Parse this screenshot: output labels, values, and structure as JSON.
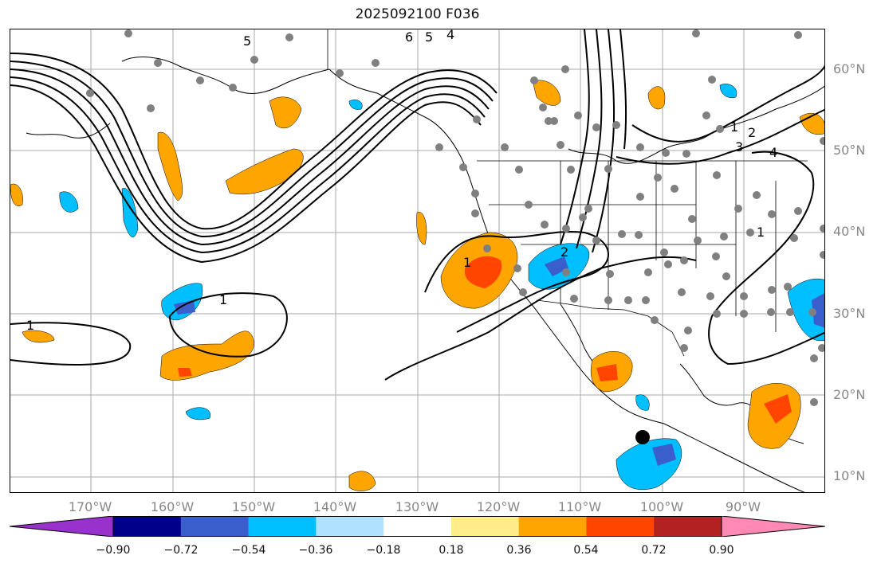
{
  "title": "2025092100 F036",
  "lat_labels": [
    "60°N",
    "50°N",
    "40°N",
    "30°N",
    "20°N",
    "10°N"
  ],
  "lon_labels": [
    "170°W",
    "160°W",
    "150°W",
    "140°W",
    "130°W",
    "120°W",
    "110°W",
    "100°W",
    "90°W"
  ],
  "contour_labels": [
    "1",
    "1",
    "1",
    "2",
    "1",
    "2",
    "3",
    "4",
    "5",
    "6",
    "5",
    "4",
    "1"
  ],
  "colorbar": {
    "ticks": [
      "−0.90",
      "−0.72",
      "−0.54",
      "−0.36",
      "−0.18",
      "0.18",
      "0.36",
      "0.54",
      "0.72",
      "0.90"
    ],
    "colors": [
      "#9932cc",
      "#00008b",
      "#3a5fcd",
      "#00bfff",
      "#b0e2ff",
      "#ffffff",
      "#ffec8b",
      "#ffa500",
      "#ff4500",
      "#b22222",
      "#ff89b5"
    ]
  },
  "map_data": {
    "lat_range": [
      8,
      65
    ],
    "lon_range": [
      -180,
      -80
    ],
    "shading_variable_range": [
      -0.9,
      0.9
    ]
  }
}
